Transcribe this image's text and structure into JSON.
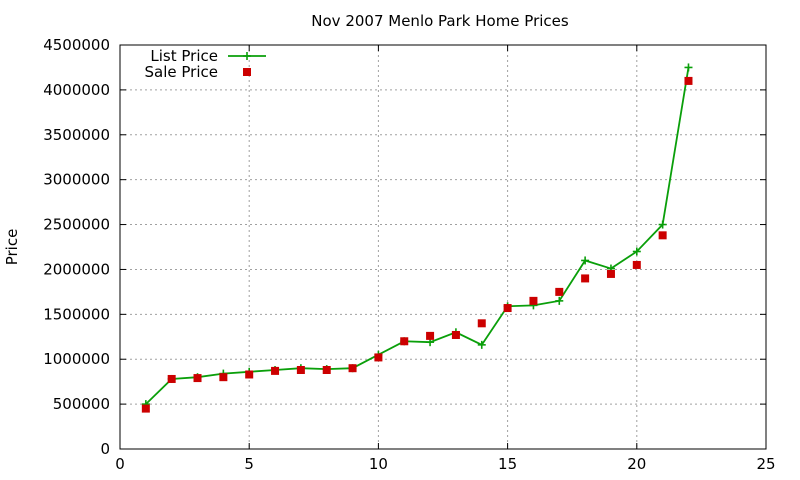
{
  "chart_data": {
    "type": "line",
    "title": "Nov 2007 Menlo Park Home Prices",
    "xlabel": "",
    "ylabel": "Price",
    "xlim": [
      0,
      25
    ],
    "ylim": [
      0,
      4500000
    ],
    "x_ticks": [
      0,
      5,
      10,
      15,
      20,
      25
    ],
    "y_ticks": [
      0,
      500000,
      1000000,
      1500000,
      2000000,
      2500000,
      3000000,
      3500000,
      4000000,
      4500000
    ],
    "grid": true,
    "legend_position": "top-left",
    "series": [
      {
        "name": "List Price",
        "style": "line-cross",
        "color": "#0a9f0a",
        "x": [
          1,
          2,
          3,
          4,
          5,
          6,
          7,
          8,
          9,
          10,
          11,
          12,
          13,
          14,
          15,
          16,
          17,
          18,
          19,
          20,
          21,
          22
        ],
        "values": [
          500000,
          780000,
          800000,
          840000,
          860000,
          880000,
          900000,
          890000,
          900000,
          1050000,
          1200000,
          1190000,
          1300000,
          1160000,
          1590000,
          1600000,
          1650000,
          2100000,
          2010000,
          2200000,
          2500000,
          4250000
        ]
      },
      {
        "name": "Sale Price",
        "style": "square-points",
        "color": "#cc0000",
        "x": [
          1,
          2,
          3,
          4,
          5,
          6,
          7,
          8,
          9,
          10,
          11,
          12,
          13,
          14,
          15,
          16,
          17,
          18,
          19,
          20,
          21,
          22
        ],
        "values": [
          450000,
          780000,
          790000,
          800000,
          830000,
          870000,
          880000,
          880000,
          900000,
          1020000,
          1200000,
          1260000,
          1270000,
          1400000,
          1570000,
          1650000,
          1750000,
          1900000,
          1950000,
          2050000,
          2380000,
          4100000
        ]
      }
    ]
  }
}
